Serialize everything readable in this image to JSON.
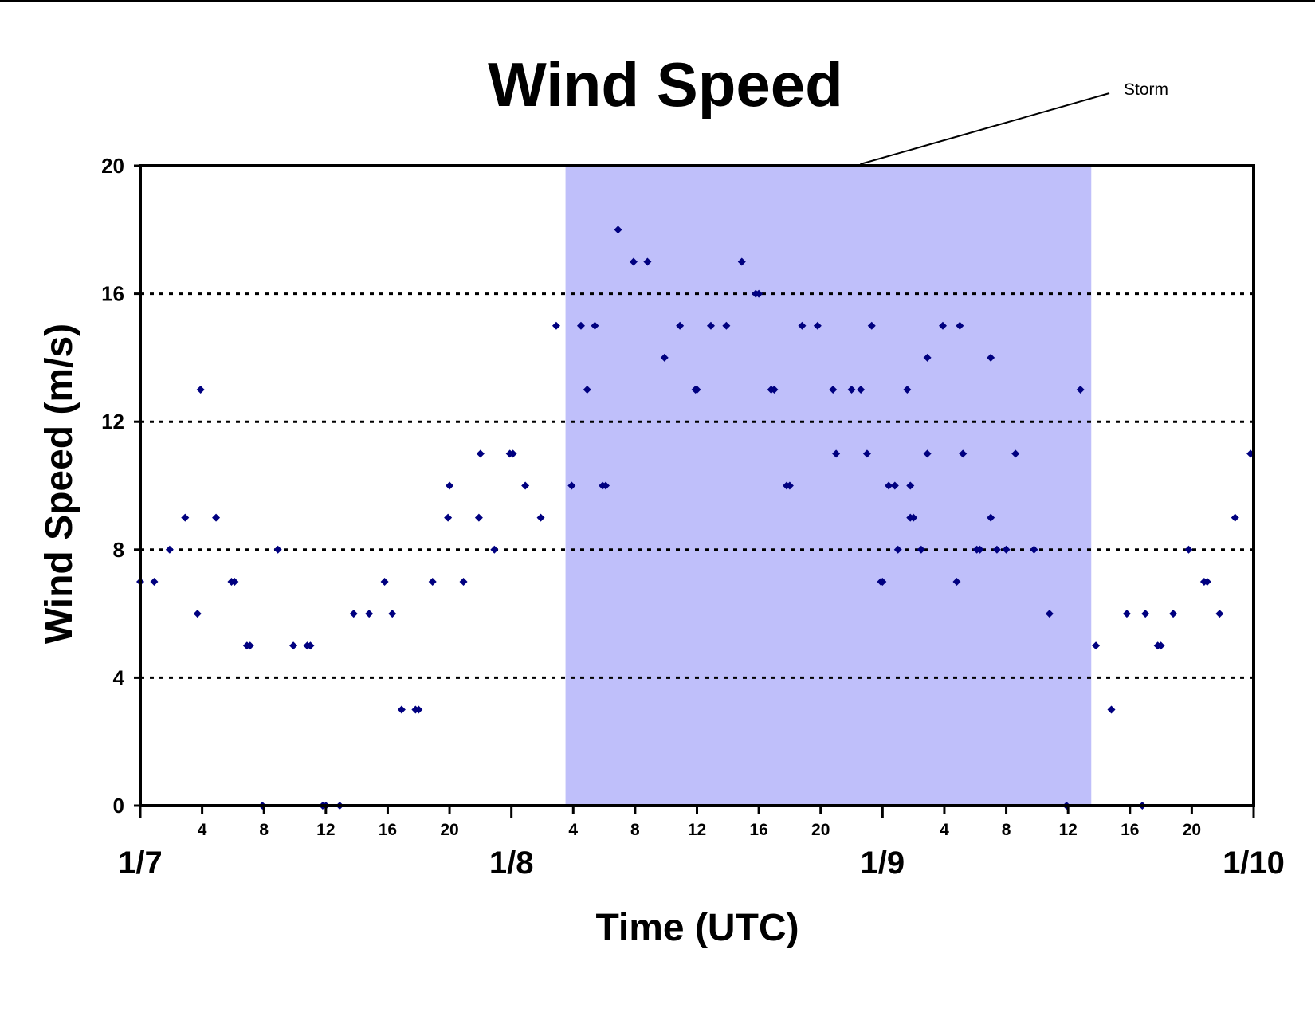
{
  "chart_data": {
    "type": "scatter",
    "title": "Wind Speed",
    "xlabel": "Time (UTC)",
    "ylabel": "Wind Speed (m/s)",
    "x_unit": "hours after 1/7 00:00 UTC",
    "xlim": [
      0,
      72
    ],
    "ylim": [
      0,
      20
    ],
    "y_ticks": [
      0,
      4,
      8,
      12,
      16,
      20
    ],
    "y_gridlines": [
      4,
      8,
      12,
      16
    ],
    "grid": "horizontal dotted",
    "x_hour_ticks": [
      {
        "x": 4,
        "label": "4"
      },
      {
        "x": 8,
        "label": "8"
      },
      {
        "x": 12,
        "label": "12"
      },
      {
        "x": 16,
        "label": "16"
      },
      {
        "x": 20,
        "label": "20"
      },
      {
        "x": 28,
        "label": "4"
      },
      {
        "x": 32,
        "label": "8"
      },
      {
        "x": 36,
        "label": "12"
      },
      {
        "x": 40,
        "label": "16"
      },
      {
        "x": 44,
        "label": "20"
      },
      {
        "x": 52,
        "label": "4"
      },
      {
        "x": 56,
        "label": "8"
      },
      {
        "x": 60,
        "label": "12"
      },
      {
        "x": 64,
        "label": "16"
      },
      {
        "x": 68,
        "label": "20"
      }
    ],
    "x_date_labels": [
      {
        "x": 0,
        "label": "1/7"
      },
      {
        "x": 24,
        "label": "1/8"
      },
      {
        "x": 48,
        "label": "1/9"
      },
      {
        "x": 72,
        "label": "1/10"
      }
    ],
    "shaded_region": {
      "label": "Storm",
      "x_start": 27.5,
      "x_end": 61.5,
      "color": "#BFBFFA"
    },
    "marker_color": "#000080",
    "series": [
      {
        "points": [
          [
            0,
            7
          ],
          [
            0.9,
            7
          ],
          [
            1.9,
            8
          ],
          [
            2.9,
            9
          ],
          [
            3.7,
            6
          ],
          [
            3.9,
            13
          ],
          [
            4.9,
            9
          ],
          [
            5.9,
            7
          ],
          [
            6.1,
            7
          ],
          [
            6.9,
            5
          ],
          [
            7.1,
            5
          ],
          [
            7.9,
            0
          ],
          [
            8.9,
            8
          ],
          [
            9.9,
            5
          ],
          [
            10.8,
            5
          ],
          [
            11,
            5
          ],
          [
            11.8,
            0
          ],
          [
            12,
            0
          ],
          [
            12.9,
            0
          ],
          [
            13.8,
            6
          ],
          [
            14.8,
            6
          ],
          [
            15.8,
            7
          ],
          [
            16.3,
            6
          ],
          [
            16.9,
            3
          ],
          [
            17.8,
            3
          ],
          [
            18,
            3
          ],
          [
            18.9,
            7
          ],
          [
            19.9,
            9
          ],
          [
            20,
            10
          ],
          [
            20.9,
            7
          ],
          [
            21.9,
            9
          ],
          [
            22,
            11
          ],
          [
            22.9,
            8
          ],
          [
            23.9,
            11
          ],
          [
            24.1,
            11
          ],
          [
            24.9,
            10
          ],
          [
            25.9,
            9
          ],
          [
            26.9,
            15
          ],
          [
            27.9,
            10
          ],
          [
            28.5,
            15
          ],
          [
            28.9,
            13
          ],
          [
            29.4,
            15
          ],
          [
            29.9,
            10
          ],
          [
            30.1,
            10
          ],
          [
            30.9,
            18
          ],
          [
            31.9,
            17
          ],
          [
            32.8,
            17
          ],
          [
            33.9,
            14
          ],
          [
            34.9,
            15
          ],
          [
            35.9,
            13
          ],
          [
            36,
            13
          ],
          [
            36.9,
            15
          ],
          [
            37.9,
            15
          ],
          [
            38.9,
            17
          ],
          [
            39.8,
            16
          ],
          [
            40,
            16
          ],
          [
            40.8,
            13
          ],
          [
            41,
            13
          ],
          [
            41.8,
            10
          ],
          [
            42,
            10
          ],
          [
            42.8,
            15
          ],
          [
            43.8,
            15
          ],
          [
            44.8,
            13
          ],
          [
            45,
            11
          ],
          [
            46,
            13
          ],
          [
            46.6,
            13
          ],
          [
            47,
            11
          ],
          [
            47.3,
            15
          ],
          [
            47.9,
            7
          ],
          [
            48,
            7
          ],
          [
            48.4,
            10
          ],
          [
            48.8,
            10
          ],
          [
            49,
            8
          ],
          [
            49.6,
            13
          ],
          [
            49.8,
            10
          ],
          [
            49.8,
            9
          ],
          [
            50,
            9
          ],
          [
            50.5,
            8
          ],
          [
            50.9,
            11
          ],
          [
            50.9,
            14
          ],
          [
            51.9,
            15
          ],
          [
            52.8,
            7
          ],
          [
            53,
            15
          ],
          [
            53.2,
            11
          ],
          [
            54.1,
            8
          ],
          [
            54.3,
            8
          ],
          [
            55,
            9
          ],
          [
            55,
            14
          ],
          [
            55.4,
            8
          ],
          [
            56,
            8
          ],
          [
            56.6,
            11
          ],
          [
            57.8,
            8
          ],
          [
            58.8,
            6
          ],
          [
            59.9,
            0
          ],
          [
            60.8,
            13
          ],
          [
            61.8,
            5
          ],
          [
            62.8,
            3
          ],
          [
            63.8,
            6
          ],
          [
            64.8,
            0
          ],
          [
            65,
            6
          ],
          [
            65.8,
            5
          ],
          [
            66,
            5
          ],
          [
            66.8,
            6
          ],
          [
            67.8,
            8
          ],
          [
            68.8,
            7
          ],
          [
            69,
            7
          ],
          [
            69.8,
            6
          ],
          [
            70.8,
            9
          ],
          [
            71.8,
            11
          ]
        ]
      }
    ]
  }
}
